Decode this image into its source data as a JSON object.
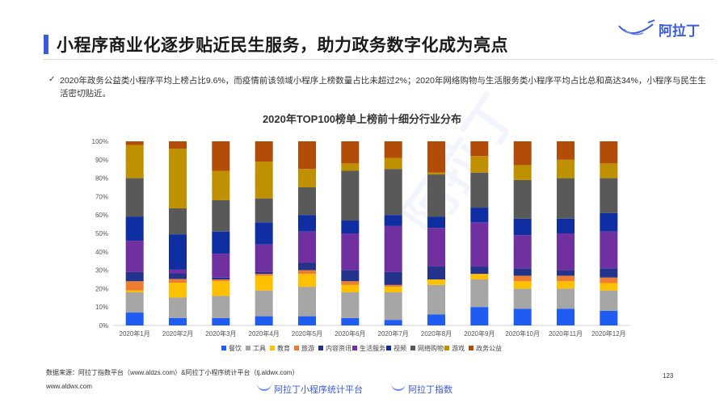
{
  "header": {
    "title": "小程序商业化逐步贴近民生服务，助力政务数字化成为亮点",
    "logo_text": "阿拉丁"
  },
  "summary": {
    "bullet": "✓",
    "text": "2020年政务公益类小程序平均上榜占比9.6%，而疫情前该领域小程序上榜数量占比未超过2%；2020年网络购物与生活服务类小程序平均占比总和高达34%，小程序与民生生活密切贴近。"
  },
  "footer": {
    "source": "数据来源：阿拉丁指数平台（www.aldzs.com）&阿拉丁小程序统计平台（tj.aldwx.com）",
    "site": "www.aldwx.com",
    "page": "123",
    "logo1": "阿拉丁小程序统计平台",
    "logo2": "阿拉丁指数"
  },
  "watermark": "阿拉丁",
  "chart_data": {
    "type": "bar",
    "stacked": true,
    "percent": true,
    "title": "2020年TOP100榜单上榜前十细分行业分布",
    "categories": [
      "2020年1月",
      "2020年2月",
      "2020年3月",
      "2020年4月",
      "2020年5月",
      "2020年6月",
      "2020年7月",
      "2020年8月",
      "2020年9月",
      "2020年10月",
      "2020年11月",
      "2020年12月"
    ],
    "y_ticks": [
      "0%",
      "10%",
      "20%",
      "30%",
      "40%",
      "50%",
      "60%",
      "70%",
      "80%",
      "90%",
      "100%"
    ],
    "ylim": [
      0,
      100
    ],
    "legend_position": "bottom",
    "series": [
      {
        "name": "餐饮",
        "color": "#1f5cf2",
        "values": [
          7,
          4,
          4,
          5,
          5,
          4,
          3,
          6,
          10,
          9,
          9,
          8
        ]
      },
      {
        "name": "工具",
        "color": "#a6a6a6",
        "values": [
          11,
          11,
          12,
          14,
          16,
          14,
          15,
          16,
          15,
          11,
          11,
          11
        ]
      },
      {
        "name": "教育",
        "color": "#ffc000",
        "values": [
          1,
          8,
          8,
          8,
          7,
          4,
          3,
          3,
          3,
          4,
          4,
          4
        ]
      },
      {
        "name": "旅游",
        "color": "#ed7d31",
        "values": [
          5,
          2,
          1,
          1,
          2,
          2,
          1,
          0,
          0,
          3,
          3,
          3
        ]
      },
      {
        "name": "内容资讯",
        "color": "#23338c",
        "values": [
          5,
          3,
          1,
          1,
          4,
          6,
          7,
          7,
          4,
          4,
          3,
          5
        ]
      },
      {
        "name": "生活服务",
        "color": "#7030a0",
        "values": [
          17,
          2,
          13,
          15,
          17,
          20,
          25,
          21,
          24,
          18,
          20,
          20
        ]
      },
      {
        "name": "视频",
        "color": "#0e2ea1",
        "values": [
          13,
          19,
          12,
          12,
          9,
          7,
          6,
          6,
          8,
          9,
          8,
          10
        ]
      },
      {
        "name": "网络购物",
        "color": "#595959",
        "values": [
          21,
          14,
          17,
          13,
          15,
          27,
          25,
          23,
          19,
          21,
          22,
          19
        ]
      },
      {
        "name": "游戏",
        "color": "#bf9000",
        "values": [
          18,
          32,
          16,
          20,
          10,
          4,
          6,
          1,
          9,
          8,
          10,
          8
        ]
      },
      {
        "name": "政务公益",
        "color": "#b44c09",
        "values": [
          2,
          4,
          16,
          11,
          15,
          12,
          9,
          17,
          8,
          13,
          10,
          12
        ]
      }
    ]
  }
}
